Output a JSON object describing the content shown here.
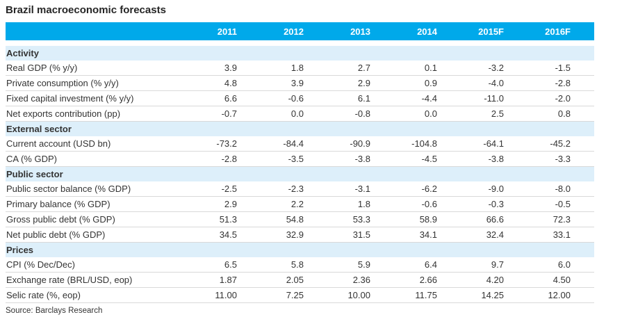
{
  "title": "Brazil macroeconomic forecasts",
  "source": "Source: Barclays Research",
  "colors": {
    "header_bg": "#00a9ea",
    "header_text": "#ffffff",
    "section_bg": "#ddeffa",
    "title_text": "#262626",
    "body_text": "#333333",
    "row_border": "#d9d9d9"
  },
  "table": {
    "columns": [
      "2011",
      "2012",
      "2013",
      "2014",
      "2015F",
      "2016F"
    ],
    "sections": [
      {
        "name": "Activity",
        "rows": [
          {
            "label": "Real GDP (% y/y)",
            "values": [
              "3.9",
              "1.8",
              "2.7",
              "0.1",
              "-3.2",
              "-1.5"
            ]
          },
          {
            "label": "Private consumption (% y/y)",
            "values": [
              "4.8",
              "3.9",
              "2.9",
              "0.9",
              "-4.0",
              "-2.8"
            ]
          },
          {
            "label": "Fixed capital investment (% y/y)",
            "values": [
              "6.6",
              "-0.6",
              "6.1",
              "-4.4",
              "-11.0",
              "-2.0"
            ]
          },
          {
            "label": "Net exports contribution (pp)",
            "values": [
              "-0.7",
              "0.0",
              "-0.8",
              "0.0",
              "2.5",
              "0.8"
            ]
          }
        ]
      },
      {
        "name": "External sector",
        "rows": [
          {
            "label": "Current account (USD bn)",
            "values": [
              "-73.2",
              "-84.4",
              "-90.9",
              "-104.8",
              "-64.1",
              "-45.2"
            ]
          },
          {
            "label": "CA (% GDP)",
            "values": [
              "-2.8",
              "-3.5",
              "-3.8",
              "-4.5",
              "-3.8",
              "-3.3"
            ]
          }
        ]
      },
      {
        "name": "Public sector",
        "rows": [
          {
            "label": "Public sector balance (% GDP)",
            "values": [
              "-2.5",
              "-2.3",
              "-3.1",
              "-6.2",
              "-9.0",
              "-8.0"
            ]
          },
          {
            "label": "Primary balance (% GDP)",
            "values": [
              "2.9",
              "2.2",
              "1.8",
              "-0.6",
              "-0.3",
              "-0.5"
            ]
          },
          {
            "label": "Gross public debt (% GDP)",
            "values": [
              "51.3",
              "54.8",
              "53.3",
              "58.9",
              "66.6",
              "72.3"
            ]
          },
          {
            "label": "Net public debt (% GDP)",
            "values": [
              "34.5",
              "32.9",
              "31.5",
              "34.1",
              "32.4",
              "33.1"
            ]
          }
        ]
      },
      {
        "name": "Prices",
        "rows": [
          {
            "label": "CPI (% Dec/Dec)",
            "values": [
              "6.5",
              "5.8",
              "5.9",
              "6.4",
              "9.7",
              "6.0"
            ]
          },
          {
            "label": "Exchange rate (BRL/USD, eop)",
            "values": [
              "1.87",
              "2.05",
              "2.36",
              "2.66",
              "4.20",
              "4.50"
            ]
          },
          {
            "label": "Selic rate (%, eop)",
            "values": [
              "11.00",
              "7.25",
              "10.00",
              "11.75",
              "14.25",
              "12.00"
            ]
          }
        ]
      }
    ]
  }
}
